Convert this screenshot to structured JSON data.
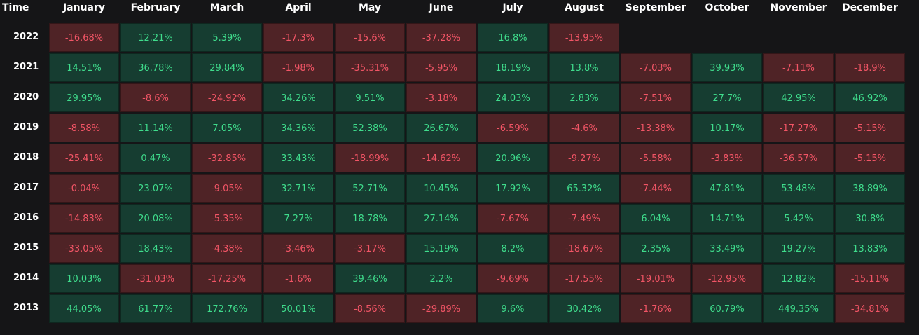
{
  "chart_data": {
    "type": "heatmap",
    "title": "",
    "row_header": "Time",
    "columns": [
      "January",
      "February",
      "March",
      "April",
      "May",
      "June",
      "July",
      "August",
      "September",
      "October",
      "November",
      "December"
    ],
    "rows": [
      {
        "year": "2022",
        "values": [
          "-16.68%",
          "12.21%",
          "5.39%",
          "-17.3%",
          "-15.6%",
          "-37.28%",
          "16.8%",
          "-13.95%",
          null,
          null,
          null,
          null
        ]
      },
      {
        "year": "2021",
        "values": [
          "14.51%",
          "36.78%",
          "29.84%",
          "-1.98%",
          "-35.31%",
          "-5.95%",
          "18.19%",
          "13.8%",
          "-7.03%",
          "39.93%",
          "-7.11%",
          "-18.9%"
        ]
      },
      {
        "year": "2020",
        "values": [
          "29.95%",
          "-8.6%",
          "-24.92%",
          "34.26%",
          "9.51%",
          "-3.18%",
          "24.03%",
          "2.83%",
          "-7.51%",
          "27.7%",
          "42.95%",
          "46.92%"
        ]
      },
      {
        "year": "2019",
        "values": [
          "-8.58%",
          "11.14%",
          "7.05%",
          "34.36%",
          "52.38%",
          "26.67%",
          "-6.59%",
          "-4.6%",
          "-13.38%",
          "10.17%",
          "-17.27%",
          "-5.15%"
        ]
      },
      {
        "year": "2018",
        "values": [
          "-25.41%",
          "0.47%",
          "-32.85%",
          "33.43%",
          "-18.99%",
          "-14.62%",
          "20.96%",
          "-9.27%",
          "-5.58%",
          "-3.83%",
          "-36.57%",
          "-5.15%"
        ]
      },
      {
        "year": "2017",
        "values": [
          "-0.04%",
          "23.07%",
          "-9.05%",
          "32.71%",
          "52.71%",
          "10.45%",
          "17.92%",
          "65.32%",
          "-7.44%",
          "47.81%",
          "53.48%",
          "38.89%"
        ]
      },
      {
        "year": "2016",
        "values": [
          "-14.83%",
          "20.08%",
          "-5.35%",
          "7.27%",
          "18.78%",
          "27.14%",
          "-7.67%",
          "-7.49%",
          "6.04%",
          "14.71%",
          "5.42%",
          "30.8%"
        ]
      },
      {
        "year": "2015",
        "values": [
          "-33.05%",
          "18.43%",
          "-4.38%",
          "-3.46%",
          "-3.17%",
          "15.19%",
          "8.2%",
          "-18.67%",
          "2.35%",
          "33.49%",
          "19.27%",
          "13.83%"
        ]
      },
      {
        "year": "2014",
        "values": [
          "10.03%",
          "-31.03%",
          "-17.25%",
          "-1.6%",
          "39.46%",
          "2.2%",
          "-9.69%",
          "-17.55%",
          "-19.01%",
          "-12.95%",
          "12.82%",
          "-15.11%"
        ]
      },
      {
        "year": "2013",
        "values": [
          "44.05%",
          "61.77%",
          "172.76%",
          "50.01%",
          "-8.56%",
          "-29.89%",
          "9.6%",
          "30.42%",
          "-1.76%",
          "60.79%",
          "449.35%",
          "-34.81%"
        ]
      }
    ],
    "colors": {
      "background": "#151517",
      "positive_cell": "#163d31",
      "positive_text": "#3fdc8c",
      "negative_cell": "#4f2326",
      "negative_text": "#f25566",
      "header_text": "#ffffff"
    }
  }
}
